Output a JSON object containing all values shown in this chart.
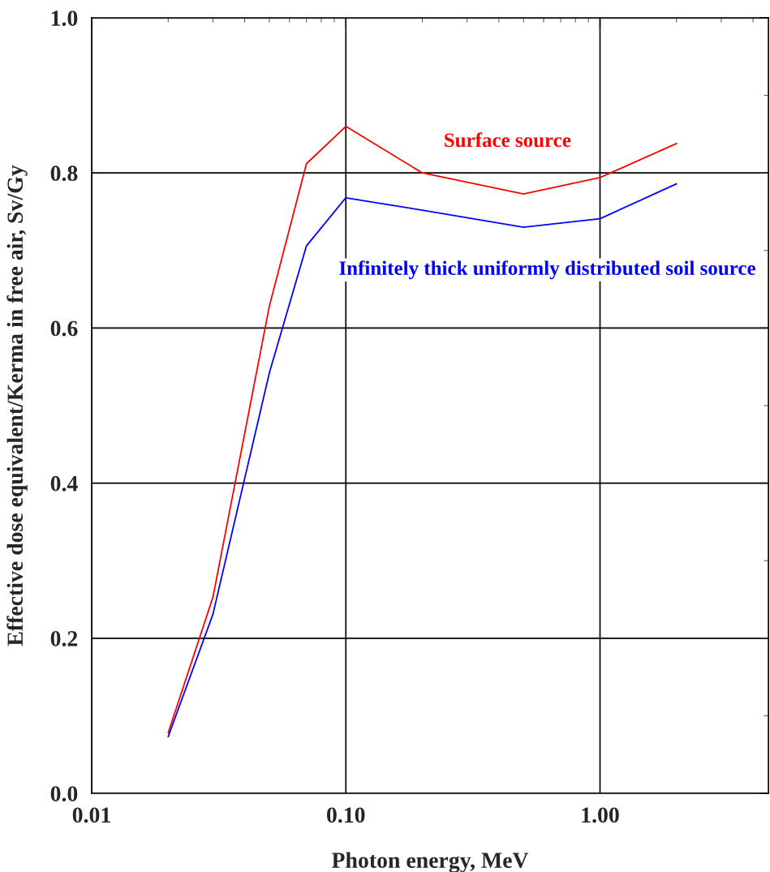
{
  "chart_data": {
    "type": "line",
    "xlabel": "Photon energy, MeV",
    "ylabel": "Effective dose equivalent/Kerma in free air, Sv/Gy",
    "x": [
      0.02,
      0.03,
      0.05,
      0.07,
      0.1,
      0.2,
      0.5,
      1.0,
      2.0
    ],
    "series": [
      {
        "name": "Surface source",
        "color": "#ff0000",
        "values": [
          0.078,
          0.253,
          0.628,
          0.812,
          0.86,
          0.8,
          0.773,
          0.794,
          0.838
        ]
      },
      {
        "name": "Infinitely thick uniformly distributed soil source",
        "color": "#0000ff",
        "values": [
          0.073,
          0.231,
          0.542,
          0.706,
          0.768,
          0.752,
          0.73,
          0.741,
          0.786
        ]
      }
    ],
    "log": "x",
    "xlim": [
      0.01,
      4.6
    ],
    "xticks": [
      {
        "value": 0.01,
        "label": "0.01"
      },
      {
        "value": 0.1,
        "label": "0.10"
      },
      {
        "value": 1,
        "label": "1.00"
      }
    ],
    "ylim": [
      0,
      1
    ],
    "yticks": [
      {
        "value": 0,
        "label": "0.0"
      },
      {
        "value": 0.2,
        "label": "0.2"
      },
      {
        "value": 0.4,
        "label": "0.4"
      },
      {
        "value": 0.6,
        "label": "0.6"
      },
      {
        "value": 0.8,
        "label": "0.8"
      },
      {
        "value": 1,
        "label": "1.0"
      }
    ],
    "grid": true,
    "legend": false,
    "marker": "none",
    "line_style": "solid"
  }
}
